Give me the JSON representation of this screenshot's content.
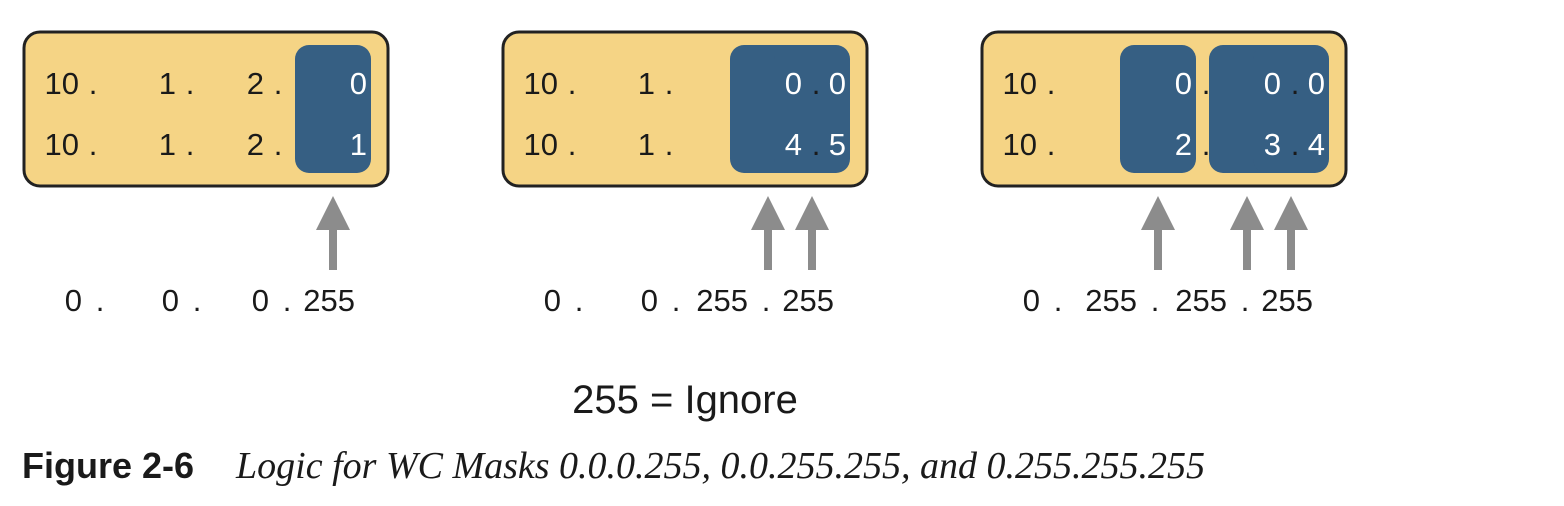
{
  "colors": {
    "box_fill": "#f5d485",
    "box_stroke": "#222222",
    "highlight": "#365f83",
    "arrow": "#8c8c8c"
  },
  "diagrams": [
    {
      "rows": [
        [
          "10",
          "1",
          "2",
          "0"
        ],
        [
          "10",
          "1",
          "2",
          "1"
        ]
      ],
      "highlighted_octets": [
        3
      ],
      "mask": [
        "0",
        "0",
        "0",
        "255"
      ]
    },
    {
      "rows": [
        [
          "10",
          "1",
          "0",
          "0"
        ],
        [
          "10",
          "1",
          "4",
          "5"
        ]
      ],
      "highlighted_octets": [
        2,
        3
      ],
      "mask": [
        "0",
        "0",
        "255",
        "255"
      ]
    },
    {
      "rows": [
        [
          "10",
          "0",
          "0",
          "0"
        ],
        [
          "10",
          "2",
          "3",
          "4"
        ]
      ],
      "highlighted_octets": [
        1,
        2,
        3
      ],
      "mask": [
        "0",
        "255",
        "255",
        "255"
      ]
    }
  ],
  "legend": "255 = Ignore",
  "caption": {
    "number": "Figure 2-6",
    "title": "Logic for WC Masks 0.0.0.255, 0.0.255.255, and 0.255.255.255"
  }
}
